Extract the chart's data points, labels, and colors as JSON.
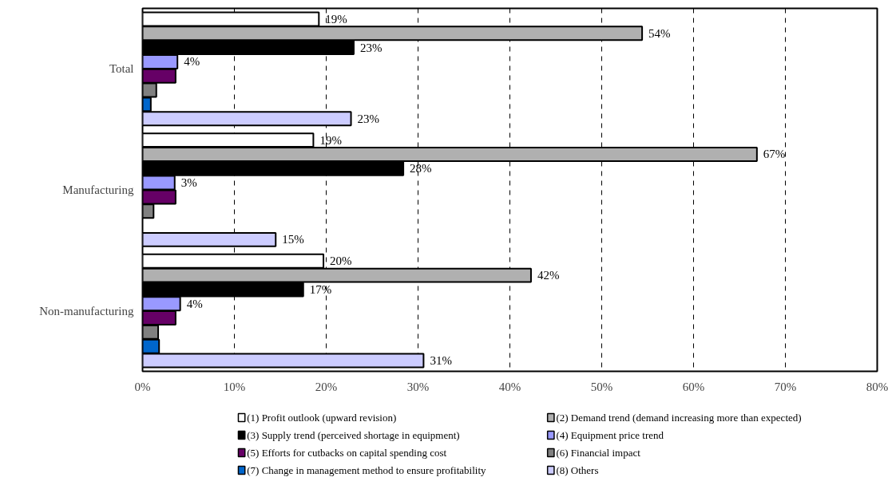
{
  "chart_data": {
    "type": "bar",
    "orientation": "horizontal",
    "categories": [
      "Total",
      "Manufacturing",
      "Non-manufacturing"
    ],
    "xlim": [
      0,
      80
    ],
    "xticks": [
      {
        "value": 0,
        "label": "0%"
      },
      {
        "value": 10,
        "label": "10%"
      },
      {
        "value": 20,
        "label": "20%"
      },
      {
        "value": 30,
        "label": "30%"
      },
      {
        "value": 40,
        "label": "40%"
      },
      {
        "value": 50,
        "label": "50%"
      },
      {
        "value": 60,
        "label": "60%"
      },
      {
        "value": 70,
        "label": "70%"
      },
      {
        "value": 80,
        "label": "80%"
      }
    ],
    "grid": "x",
    "legend": "bottom",
    "series": [
      {
        "name": "(1) Profit outlook (upward revision)",
        "color": "#ffffff",
        "values": [
          19.2,
          18.6,
          19.7
        ],
        "value_labels": [
          "19%",
          "19%",
          "20%"
        ]
      },
      {
        "name": "(2) Demand trend (demand increasing more than expected)",
        "color": "#b0b0b0",
        "values": [
          54.4,
          66.9,
          42.3
        ],
        "value_labels": [
          "54%",
          "67%",
          "42%"
        ]
      },
      {
        "name": "(3) Supply trend (perceived shortage in equipment)",
        "color": "#000000",
        "values": [
          23.0,
          28.4,
          17.5
        ],
        "value_labels": [
          "23%",
          "28%",
          "17%"
        ]
      },
      {
        "name": "(4) Equipment price trend",
        "color": "#9999ff",
        "values": [
          3.8,
          3.5,
          4.1
        ],
        "value_labels": [
          "4%",
          "3%",
          "4%"
        ]
      },
      {
        "name": "(5) Efforts for cutbacks on capital spending cost",
        "color": "#660066",
        "values": [
          3.6,
          3.6,
          3.6
        ]
      },
      {
        "name": "(6) Financial impact",
        "color": "#808080",
        "values": [
          1.5,
          1.2,
          1.7
        ]
      },
      {
        "name": "(7) Change in management method to ensure profitability",
        "color": "#0066cc",
        "values": [
          0.9,
          null,
          1.8
        ]
      },
      {
        "name": "(8) Others",
        "color": "#ccccff",
        "values": [
          22.7,
          14.5,
          30.6
        ],
        "value_labels": [
          "23%",
          "15%",
          "31%"
        ]
      }
    ]
  }
}
